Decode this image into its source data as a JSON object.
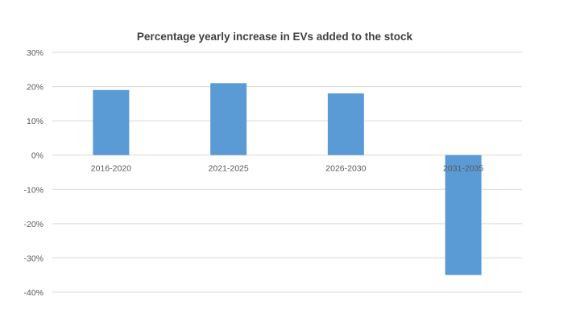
{
  "chart_data": {
    "type": "bar",
    "title": "Percentage yearly increase in EVs added to the stock",
    "xlabel": "",
    "ylabel": "",
    "categories": [
      "2016-2020",
      "2021-2025",
      "2026-2030",
      "2031-2035"
    ],
    "values": [
      0.19,
      0.21,
      0.18,
      -0.35
    ],
    "ylim": [
      -0.4,
      0.3
    ],
    "y_ticks": [
      0.3,
      0.2,
      0.1,
      0.0,
      -0.1,
      -0.2,
      -0.3,
      -0.4
    ],
    "y_tick_labels": [
      "30%",
      "20%",
      "10%",
      "0%",
      "-10%",
      "-20%",
      "-30%",
      "-40%"
    ],
    "grid": true,
    "legend": "none",
    "colors": {
      "bar": "#5b9bd5",
      "grid": "#d9d9d9",
      "tick_text": "#595959",
      "title_text": "#404040"
    }
  }
}
